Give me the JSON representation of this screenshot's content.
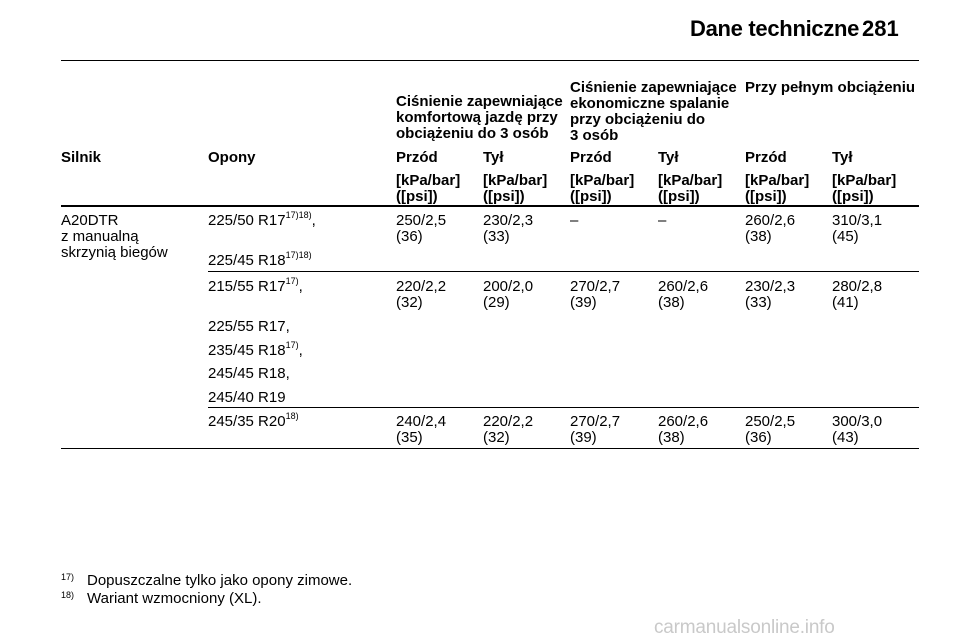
{
  "header": {
    "title": "Dane techniczne",
    "page": "281"
  },
  "table": {
    "group_headers": [
      [
        "Ciśnienie zapewniające",
        "komfortową jazdę przy",
        "obciążeniu do 3 osób"
      ],
      [
        "Ciśnienie zapewniające",
        "ekonomiczne spalanie",
        "przy obciążeniu do",
        "3 osób"
      ],
      [
        "Przy pełnym obciążeniu"
      ]
    ],
    "col_headers": [
      "Silnik",
      "Opony",
      "Przód",
      "Tył",
      "Przód",
      "Tył",
      "Przód",
      "Tył"
    ],
    "unit_line1": "[kPa/bar]",
    "unit_line2": "([psi])",
    "engine": [
      "A20DTR",
      "z manualną",
      "skrzynią biegów"
    ],
    "rows": [
      {
        "tyres": [
          {
            "t": "225/50 R17",
            "sup": "17)18)",
            "suffix": ","
          },
          {
            "t": "225/45 R18",
            "sup": "17)18)",
            "suffix": ""
          }
        ],
        "values": [
          [
            "250/2,5",
            "(36)"
          ],
          [
            "230/2,3",
            "(33)"
          ],
          [
            "–",
            ""
          ],
          [
            "–",
            ""
          ],
          [
            "260/2,6",
            "(38)"
          ],
          [
            "310/3,1",
            "(45)"
          ]
        ]
      },
      {
        "tyres": [
          {
            "t": "215/55 R17",
            "sup": "17)",
            "suffix": ","
          },
          {
            "t": "225/55 R17,",
            "sup": "",
            "suffix": ""
          },
          {
            "t": "235/45 R18",
            "sup": "17)",
            "suffix": ","
          },
          {
            "t": "245/45 R18,",
            "sup": "",
            "suffix": ""
          },
          {
            "t": "245/40 R19",
            "sup": "",
            "suffix": ""
          }
        ],
        "values": [
          [
            "220/2,2",
            "(32)"
          ],
          [
            "200/2,0",
            "(29)"
          ],
          [
            "270/2,7",
            "(39)"
          ],
          [
            "260/2,6",
            "(38)"
          ],
          [
            "230/2,3",
            "(33)"
          ],
          [
            "280/2,8",
            "(41)"
          ]
        ]
      },
      {
        "tyres": [
          {
            "t": "245/35 R20",
            "sup": "18)",
            "suffix": ""
          }
        ],
        "values": [
          [
            "240/2,4",
            "(35)"
          ],
          [
            "220/2,2",
            "(32)"
          ],
          [
            "270/2,7",
            "(39)"
          ],
          [
            "260/2,6",
            "(38)"
          ],
          [
            "250/2,5",
            "(36)"
          ],
          [
            "300/3,0",
            "(43)"
          ]
        ]
      }
    ]
  },
  "footnotes": [
    {
      "num": "17)",
      "text": "Dopuszczalne tylko jako opony zimowe."
    },
    {
      "num": "18)",
      "text": "Wariant wzmocniony (XL)."
    }
  ],
  "watermark": "carmanualsonline.info"
}
